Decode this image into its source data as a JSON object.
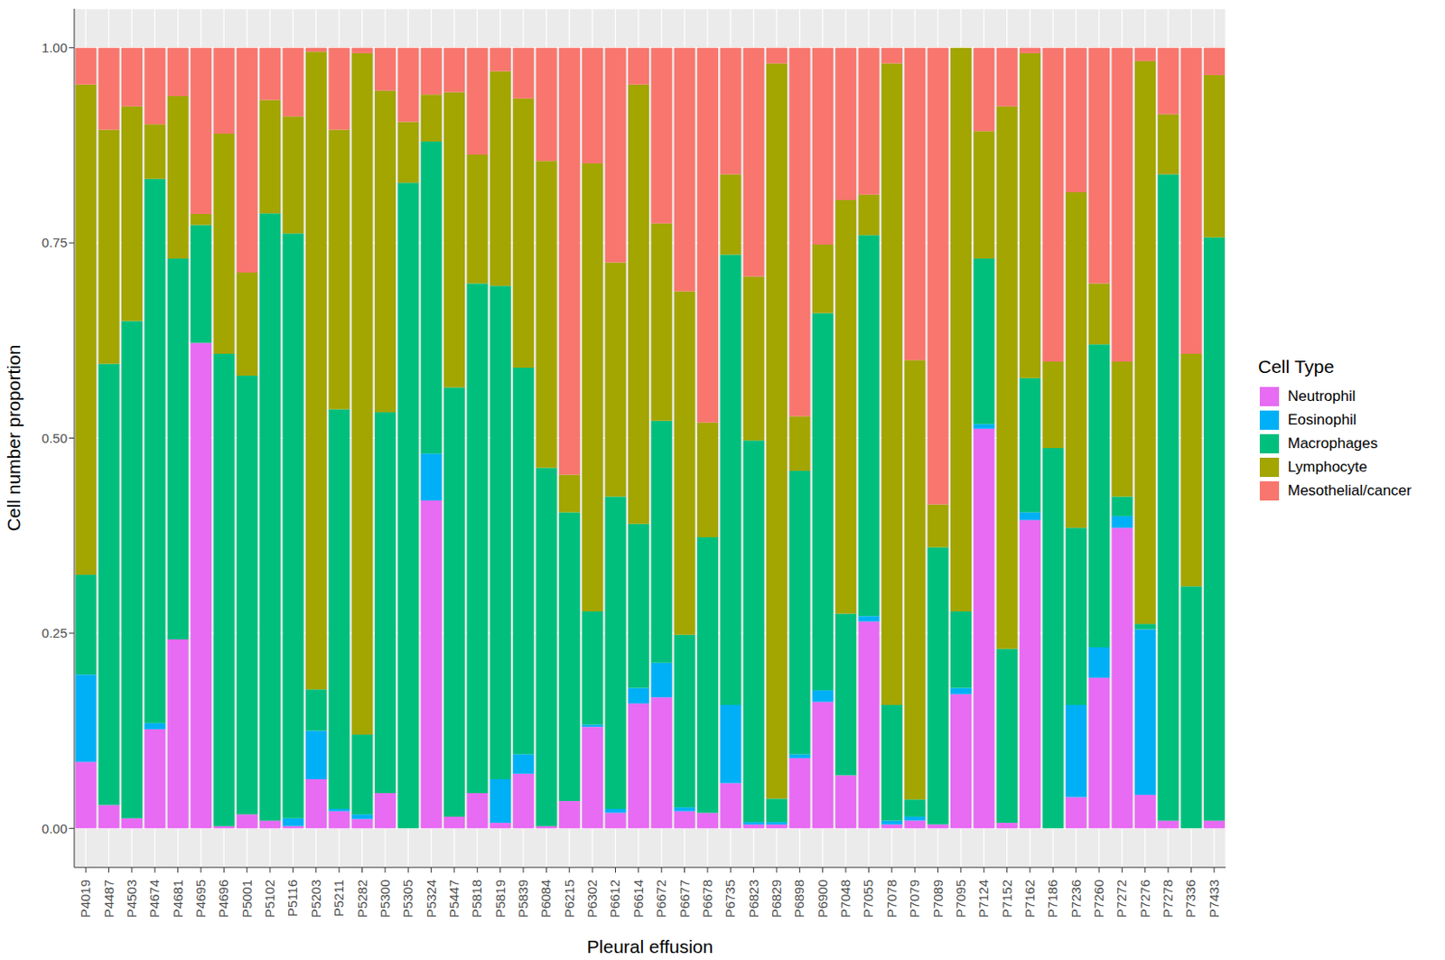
{
  "chart_data": {
    "type": "bar",
    "stacked": true,
    "x_label": "Pleural effusion",
    "y_label": "Cell number proportion",
    "legend": "right",
    "legend_title": "Cell Type",
    "grid": true,
    "ylim": [
      -0.05,
      1.05
    ],
    "yticks": [
      {
        "value": 0,
        "label": "0.00"
      },
      {
        "value": 0.25,
        "label": "0.25"
      },
      {
        "value": 0.5,
        "label": "0.50"
      },
      {
        "value": 0.75,
        "label": "0.75"
      },
      {
        "value": 1,
        "label": "1.00"
      }
    ],
    "categories": [
      "P4019",
      "P4487",
      "P4503",
      "P4674",
      "P4681",
      "P4695",
      "P4696",
      "P5001",
      "P5102",
      "P5116",
      "P5203",
      "P5211",
      "P5282",
      "P5300",
      "P5305",
      "P5324",
      "P5447",
      "P5818",
      "P5819",
      "P5839",
      "P6084",
      "P6215",
      "P6302",
      "P6612",
      "P6614",
      "P6672",
      "P6677",
      "P6678",
      "P6735",
      "P6823",
      "P6829",
      "P6898",
      "P6900",
      "P7048",
      "P7055",
      "P7078",
      "P7079",
      "P7089",
      "P7095",
      "P7124",
      "P7152",
      "P7162",
      "P7186",
      "P7236",
      "P7260",
      "P7272",
      "P7276",
      "P7278",
      "P7336",
      "P7433"
    ],
    "series": [
      {
        "name": "Neutrophil",
        "color": "#E76BF3",
        "values": [
          0.085,
          0.03,
          0.013,
          0.127,
          0.242,
          0.622,
          0.003,
          0.018,
          0.01,
          0.003,
          0.063,
          0.022,
          0.012,
          0.045,
          0,
          0.42,
          0.015,
          0.045,
          0.007,
          0.07,
          0.003,
          0.035,
          0.13,
          0.02,
          0.16,
          0.168,
          0.022,
          0.02,
          0.058,
          0.005,
          0.005,
          0.09,
          0.162,
          0.068,
          0.265,
          0.005,
          0.01,
          0.005,
          0.172,
          0.512,
          0.007,
          0.395,
          0,
          0.04,
          0.193,
          0.385,
          0.043,
          0.01,
          0,
          0.01
        ]
      },
      {
        "name": "Eosinophil",
        "color": "#00B0F6",
        "values": [
          0.112,
          0,
          0,
          0.008,
          0,
          0,
          0,
          0,
          0,
          0.01,
          0.062,
          0.003,
          0.006,
          0,
          0,
          0.06,
          0,
          0,
          0.056,
          0.025,
          0,
          0,
          0.003,
          0.005,
          0.02,
          0.044,
          0.005,
          0,
          0.1,
          0.003,
          0.003,
          0.005,
          0.015,
          0,
          0.007,
          0.005,
          0.005,
          0,
          0.008,
          0.006,
          0,
          0.01,
          0,
          0.118,
          0.039,
          0.015,
          0.212,
          0,
          0,
          0
        ]
      },
      {
        "name": "Macrophages",
        "color": "#00BF7D",
        "values": [
          0.128,
          0.565,
          0.637,
          0.697,
          0.488,
          0.151,
          0.605,
          0.562,
          0.778,
          0.749,
          0.053,
          0.512,
          0.102,
          0.488,
          0.827,
          0.4,
          0.55,
          0.653,
          0.632,
          0.495,
          0.459,
          0.37,
          0.145,
          0.4,
          0.21,
          0.31,
          0.221,
          0.353,
          0.577,
          0.489,
          0.03,
          0.363,
          0.483,
          0.207,
          0.488,
          0.148,
          0.022,
          0.355,
          0.098,
          0.212,
          0.223,
          0.172,
          0.487,
          0.227,
          0.388,
          0.025,
          0.007,
          0.828,
          0.31,
          0.747
        ]
      },
      {
        "name": "Lymphocyte",
        "color": "#A3A500",
        "values": [
          0.628,
          0.3,
          0.275,
          0.07,
          0.208,
          0.014,
          0.282,
          0.132,
          0.145,
          0.15,
          0.817,
          0.358,
          0.873,
          0.412,
          0.078,
          0.06,
          0.378,
          0.165,
          0.275,
          0.345,
          0.393,
          0.048,
          0.574,
          0.3,
          0.563,
          0.253,
          0.44,
          0.147,
          0.103,
          0.21,
          0.942,
          0.07,
          0.088,
          0.53,
          0.052,
          0.822,
          0.563,
          0.055,
          0.722,
          0.163,
          0.695,
          0.416,
          0.111,
          0.43,
          0.078,
          0.173,
          0.721,
          0.077,
          0.298,
          0.208
        ]
      },
      {
        "name": "Mesothelial/cancer",
        "color": "#F8766D",
        "values": [
          0.047,
          0.105,
          0.075,
          0.098,
          0.062,
          0.213,
          0.11,
          0.288,
          0.067,
          0.088,
          0.005,
          0.105,
          0.007,
          0.055,
          0.095,
          0.06,
          0.057,
          0.137,
          0.03,
          0.065,
          0.145,
          0.547,
          0.148,
          0.275,
          0.047,
          0.225,
          0.312,
          0.48,
          0.162,
          0.293,
          0.02,
          0.472,
          0.252,
          0.195,
          0.188,
          0.02,
          0.4,
          0.585,
          0,
          0.107,
          0.075,
          0.007,
          0.402,
          0.185,
          0.302,
          0.402,
          0.017,
          0.085,
          0.392,
          0.035
        ]
      }
    ]
  }
}
